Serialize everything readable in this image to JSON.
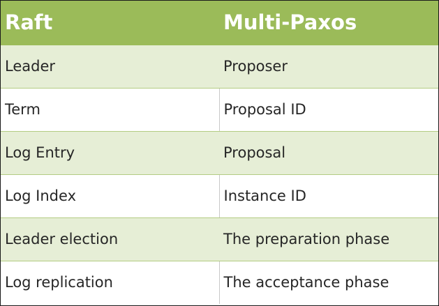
{
  "table": {
    "headers": [
      "Raft",
      "Multi-Paxos"
    ],
    "rows": [
      [
        "Leader",
        "Proposer"
      ],
      [
        "Term",
        "Proposal ID"
      ],
      [
        "Log Entry",
        "Proposal"
      ],
      [
        "Log Index",
        "Instance ID"
      ],
      [
        "Leader election",
        "The preparation phase"
      ],
      [
        "Log replication",
        "The acceptance phase"
      ]
    ]
  },
  "colors": {
    "header_bg": "#9bbb59",
    "header_text": "#ffffff",
    "band_bg": "#e6eed6",
    "row_rule": "#b3cc82"
  }
}
